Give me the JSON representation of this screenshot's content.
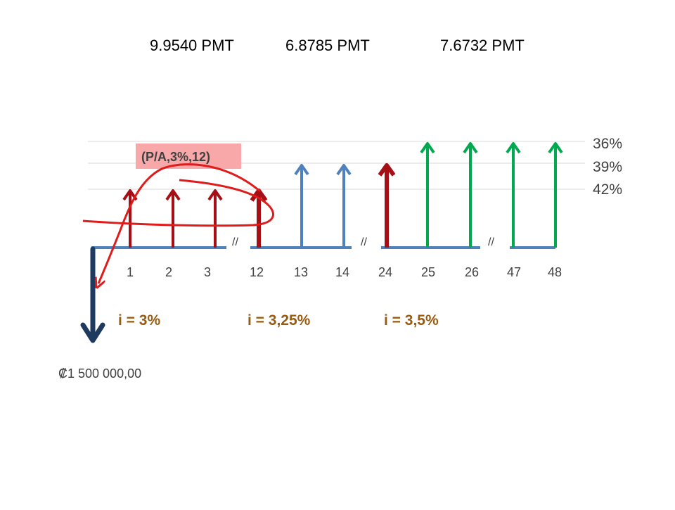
{
  "factors": [
    "9.9540 PMT",
    "6.8785 PMT",
    "7.6732 PMT"
  ],
  "formula_label": "(P/A,3%,12)",
  "percentages": [
    "36%",
    "39%",
    "42%"
  ],
  "periods": [
    "1",
    "2",
    "3",
    "12",
    "13",
    "14",
    "24",
    "25",
    "26",
    "47",
    "48"
  ],
  "break_marks": [
    "//",
    "//",
    "//"
  ],
  "rates": [
    "i = 3%",
    "i = 3,25%",
    "i = 3,5%"
  ],
  "principal": "₡1 500 000,00",
  "colors": {
    "dark_red": "#a50f15",
    "red": "#e01b1b",
    "blue": "#4f81bd",
    "green": "#00a94f",
    "navy": "#1f3a5f",
    "axis": "#4f81bd",
    "rate_text": "#985b10",
    "grid": "#d9d9d9"
  }
}
